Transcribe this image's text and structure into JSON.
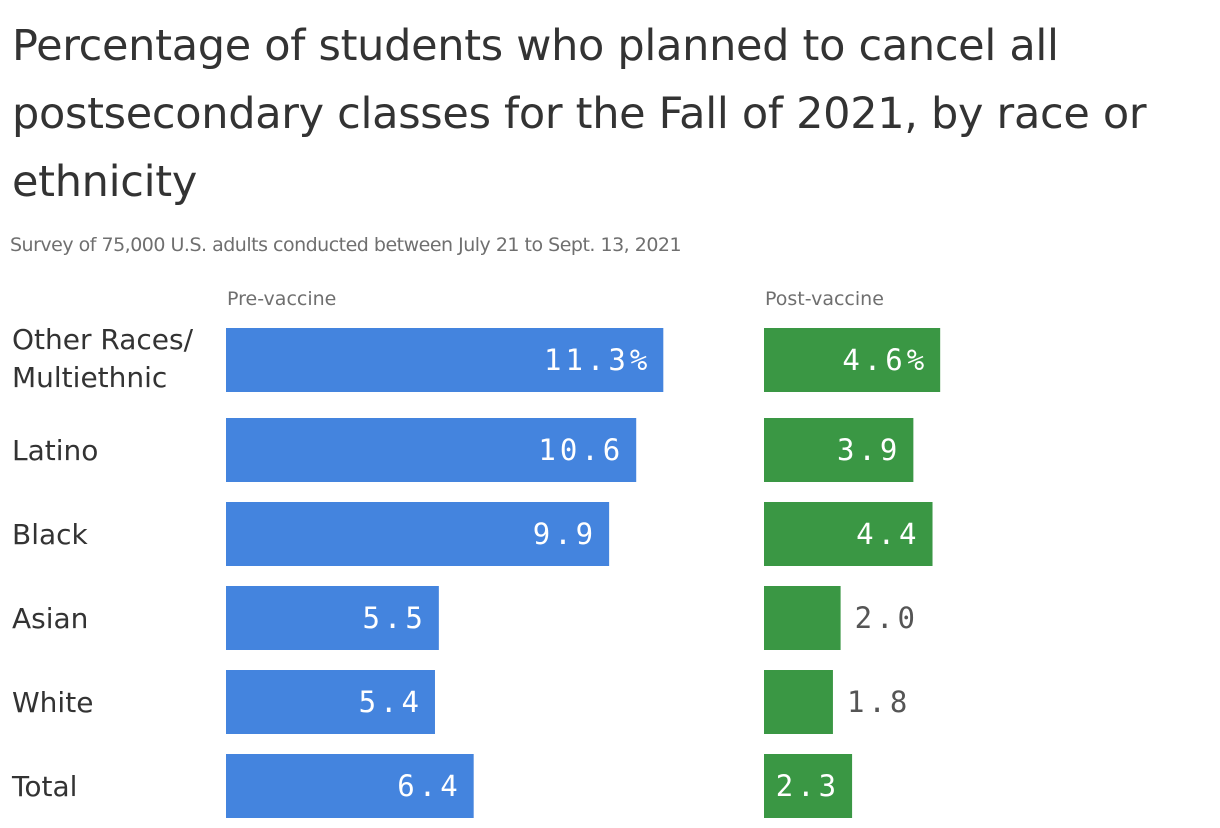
{
  "title": "Percentage of students who planned to cancel all postsecondary classes for the Fall of 2021, by race or ethnicity",
  "subtitle": "Survey of 75,000 U.S. adults conducted between July 21 to Sept. 13, 2021",
  "colors": {
    "pre": "#4484de",
    "post": "#3a9744"
  },
  "chart_data": {
    "type": "bar",
    "orientation": "horizontal",
    "categories": [
      "Other Races/\nMultiethnic",
      "Latino",
      "Black",
      "Asian",
      "White",
      "Total"
    ],
    "series": [
      {
        "name": "Pre-vaccine",
        "values": [
          11.3,
          10.6,
          9.9,
          5.5,
          5.4,
          6.4
        ],
        "labels": [
          "11.3%",
          "10.6",
          "9.9",
          "5.5",
          "5.4",
          "6.4"
        ]
      },
      {
        "name": "Post-vaccine",
        "values": [
          4.6,
          3.9,
          4.4,
          2.0,
          1.8,
          2.3
        ],
        "labels": [
          "4.6%",
          "3.9",
          "4.4",
          "2.0",
          "1.8",
          "2.3"
        ]
      }
    ],
    "grid": false,
    "legend": "none"
  }
}
